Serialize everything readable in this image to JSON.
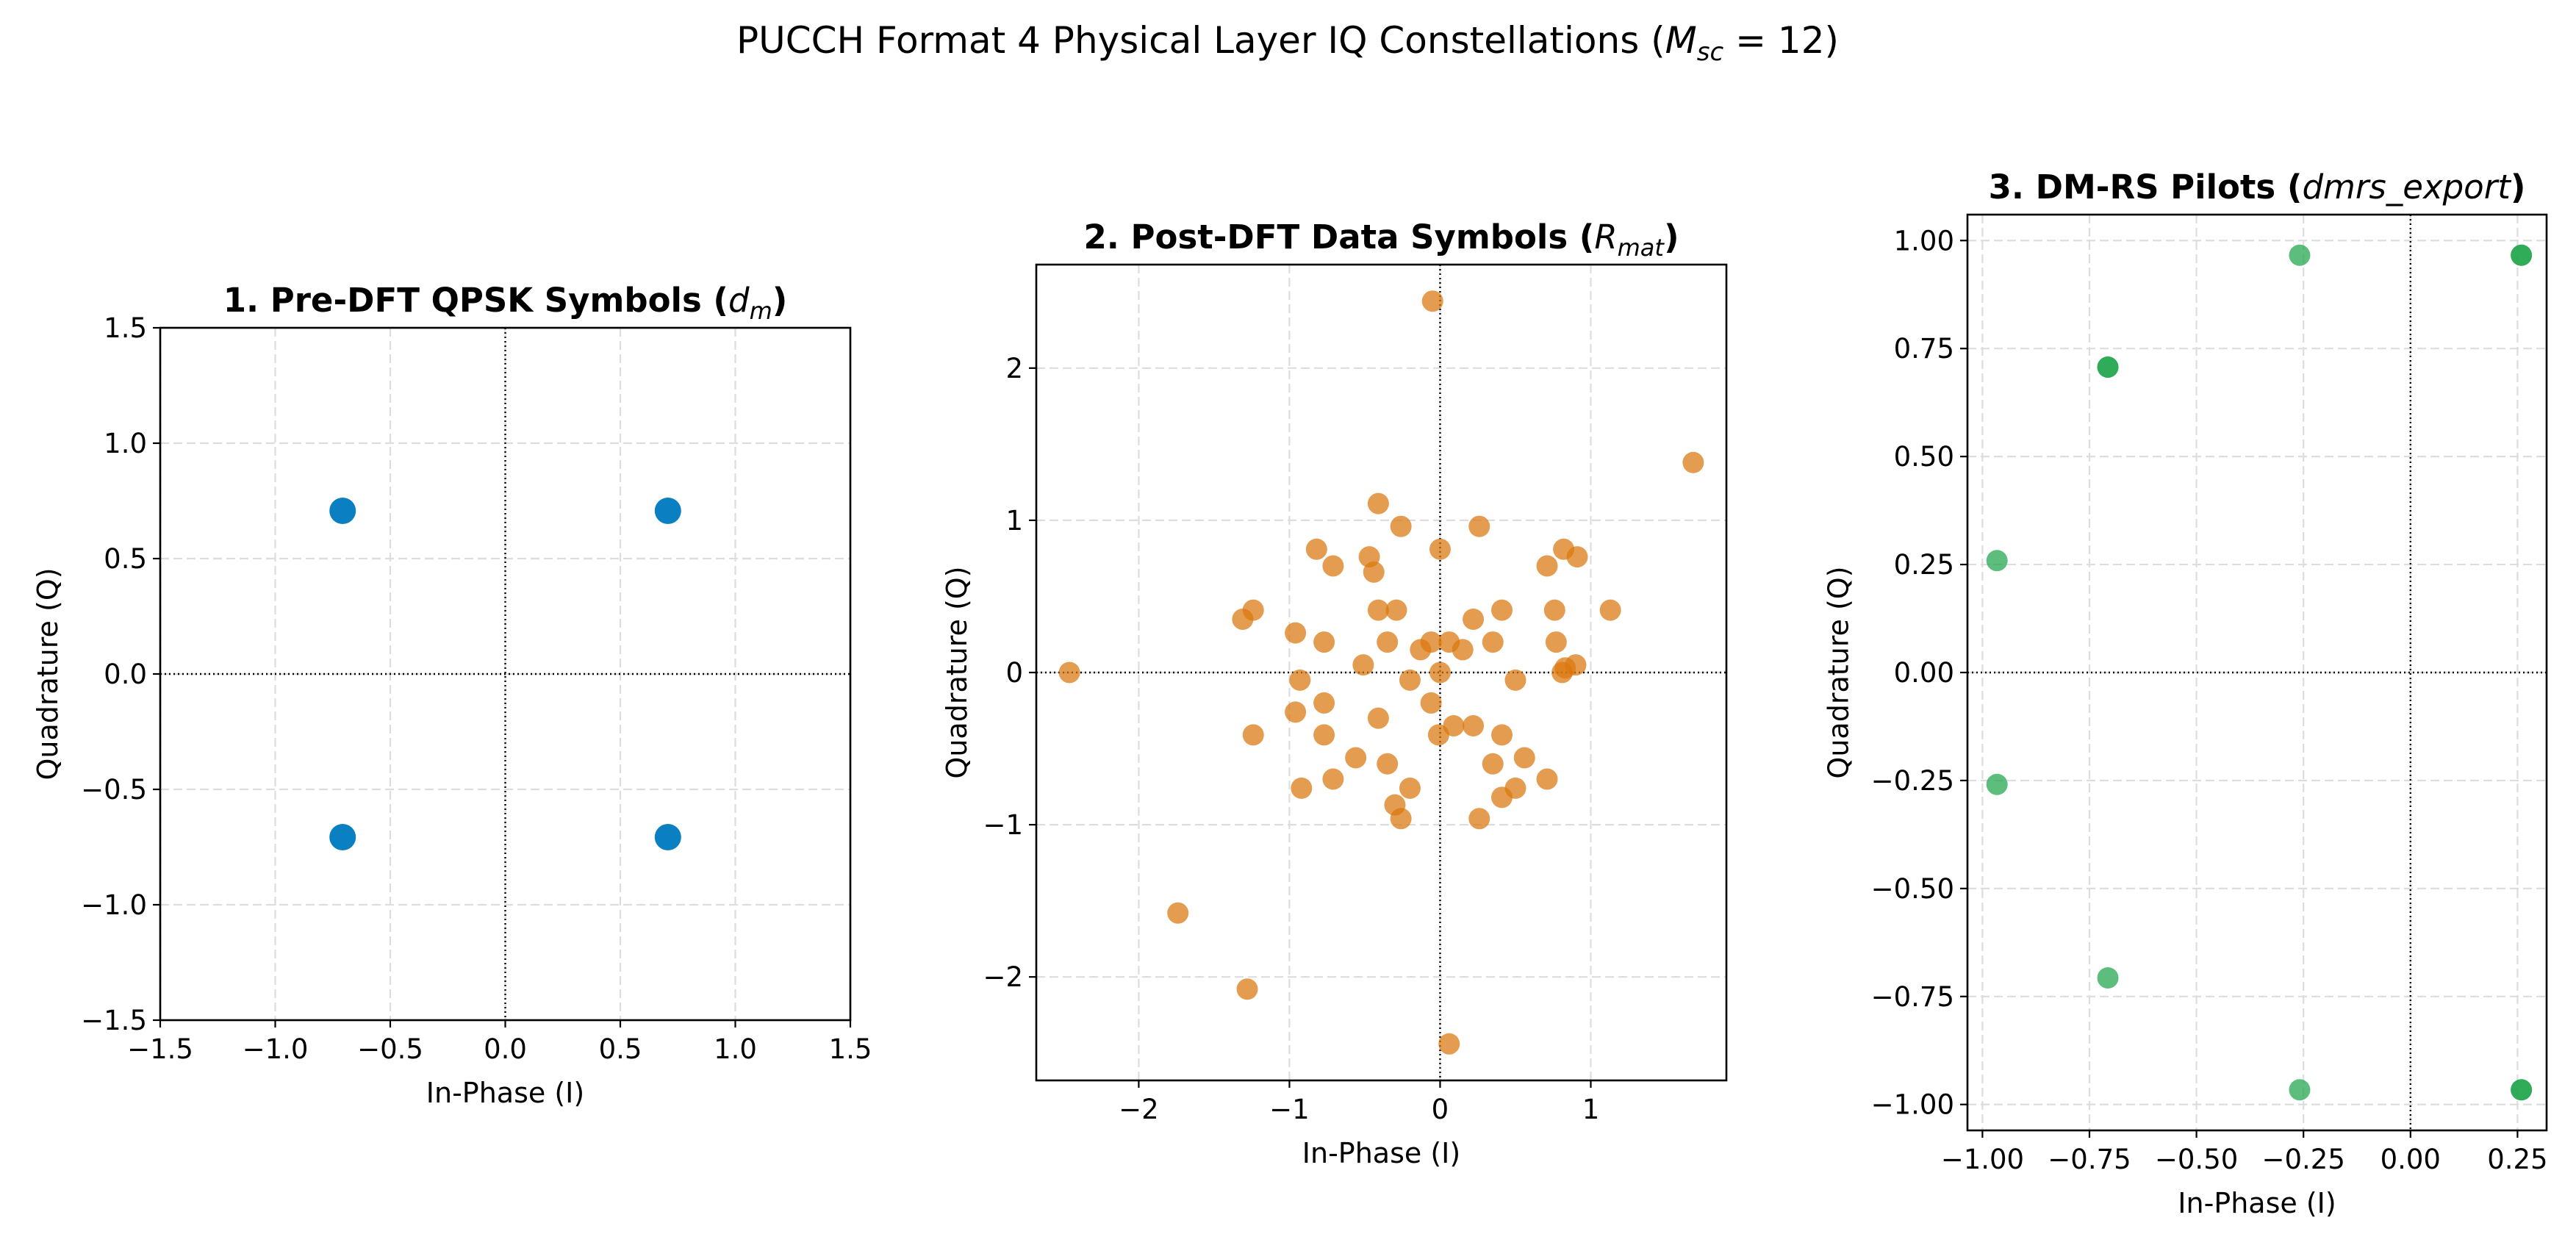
{
  "figure": {
    "title": "PUCCH Format 4 Physical Layer IQ Constellations (",
    "title_math": "M",
    "title_math_sub": "sc",
    "title_suffix": " = 12)"
  },
  "colors": {
    "pre_dft": "#0a7fc2",
    "post_dft": "#d9770c",
    "dmrs": "#1fa34a",
    "grid": "#dddddd",
    "zero_line": "#000000"
  },
  "chart_data": [
    {
      "type": "scatter",
      "title_bold": "1. Pre-DFT QPSK Symbols (",
      "title_math": "d",
      "title_math_sub": "m",
      "title_close": ")",
      "xlabel": "In-Phase (I)",
      "ylabel": "Quadrature (Q)",
      "xlim": [
        -1.5,
        1.5
      ],
      "ylim": [
        -1.5,
        1.5
      ],
      "xticks": [
        -1.5,
        -1.0,
        -0.5,
        0.0,
        0.5,
        1.0,
        1.5
      ],
      "xtick_labels": [
        "−1.5",
        "−1.0",
        "−0.5",
        "0.0",
        "0.5",
        "1.0",
        "1.5"
      ],
      "yticks": [
        -1.5,
        -1.0,
        -0.5,
        0.0,
        0.5,
        1.0,
        1.5
      ],
      "ytick_labels": [
        "−1.5",
        "−1.0",
        "−0.5",
        "0.0",
        "0.5",
        "1.0",
        "1.5"
      ],
      "grid": true,
      "marker_alpha": 1.0,
      "points": [
        [
          -0.707,
          0.707
        ],
        [
          0.707,
          0.707
        ],
        [
          -0.707,
          -0.707
        ],
        [
          0.707,
          -0.707
        ]
      ]
    },
    {
      "type": "scatter",
      "title_bold": "2. Post-DFT Data Symbols (",
      "title_math": "R",
      "title_math_sub": "mat",
      "title_close": ")",
      "xlabel": "In-Phase (I)",
      "ylabel": "Quadrature (Q)",
      "xlim": [
        -2.68,
        1.9
      ],
      "ylim": [
        -2.68,
        2.68
      ],
      "xticks": [
        -2,
        -1,
        0,
        1
      ],
      "xtick_labels": [
        "−2",
        "−1",
        "0",
        "1"
      ],
      "yticks": [
        -2,
        -1,
        0,
        1,
        2
      ],
      "ytick_labels": [
        "−2",
        "−1",
        "0",
        "1",
        "2"
      ],
      "grid": true,
      "marker_alpha": 0.72,
      "points": [
        [
          -0.05,
          2.44
        ],
        [
          1.68,
          1.38
        ],
        [
          -0.41,
          1.11
        ],
        [
          -0.26,
          0.96
        ],
        [
          0.26,
          0.96
        ],
        [
          -0.82,
          0.81
        ],
        [
          0.0,
          0.81
        ],
        [
          0.82,
          0.81
        ],
        [
          0.91,
          0.76
        ],
        [
          -0.47,
          0.76
        ],
        [
          -0.71,
          0.7
        ],
        [
          0.71,
          0.7
        ],
        [
          -0.44,
          0.66
        ],
        [
          -1.24,
          0.41
        ],
        [
          -1.31,
          0.35
        ],
        [
          -0.41,
          0.41
        ],
        [
          -0.29,
          0.41
        ],
        [
          0.41,
          0.41
        ],
        [
          0.76,
          0.41
        ],
        [
          1.13,
          0.41
        ],
        [
          0.22,
          0.35
        ],
        [
          -0.96,
          0.26
        ],
        [
          -0.77,
          0.2
        ],
        [
          -0.35,
          0.2
        ],
        [
          -0.06,
          0.2
        ],
        [
          0.06,
          0.2
        ],
        [
          0.35,
          0.2
        ],
        [
          0.77,
          0.2
        ],
        [
          -0.13,
          0.15
        ],
        [
          0.15,
          0.15
        ],
        [
          -0.51,
          0.05
        ],
        [
          0.83,
          0.03
        ],
        [
          0.9,
          0.05
        ],
        [
          -2.46,
          0.0
        ],
        [
          0.0,
          0.0
        ],
        [
          0.81,
          0.0
        ],
        [
          -0.93,
          -0.05
        ],
        [
          -0.2,
          -0.05
        ],
        [
          0.5,
          -0.05
        ],
        [
          -0.77,
          -0.2
        ],
        [
          -0.06,
          -0.2
        ],
        [
          -0.96,
          -0.26
        ],
        [
          -0.41,
          -0.3
        ],
        [
          0.09,
          -0.35
        ],
        [
          0.22,
          -0.35
        ],
        [
          -1.24,
          -0.41
        ],
        [
          -0.77,
          -0.41
        ],
        [
          -0.01,
          -0.41
        ],
        [
          0.41,
          -0.41
        ],
        [
          0.56,
          -0.56
        ],
        [
          -0.56,
          -0.56
        ],
        [
          -0.35,
          -0.6
        ],
        [
          0.35,
          -0.6
        ],
        [
          -0.71,
          -0.7
        ],
        [
          0.71,
          -0.7
        ],
        [
          -0.92,
          -0.76
        ],
        [
          -0.2,
          -0.76
        ],
        [
          0.5,
          -0.76
        ],
        [
          0.41,
          -0.82
        ],
        [
          -0.3,
          -0.87
        ],
        [
          -0.26,
          -0.96
        ],
        [
          0.26,
          -0.96
        ],
        [
          -1.74,
          -1.58
        ],
        [
          -1.28,
          -2.08
        ],
        [
          0.06,
          -2.44
        ]
      ]
    },
    {
      "type": "scatter",
      "title_bold": "3. DM-RS Pilots (",
      "title_math": "dmrs_export",
      "title_math_sub": "",
      "title_close": ")",
      "xlabel": "In-Phase (I)",
      "ylabel": "Quadrature (Q)",
      "xlim": [
        -1.035,
        0.318
      ],
      "ylim": [
        -1.06,
        1.06
      ],
      "xticks": [
        -1.0,
        -0.75,
        -0.5,
        -0.25,
        0.0,
        0.25
      ],
      "xtick_labels": [
        "−1.00",
        "−0.75",
        "−0.50",
        "−0.25",
        "0.00",
        "0.25"
      ],
      "yticks": [
        -1.0,
        -0.75,
        -0.5,
        -0.25,
        0.0,
        0.25,
        0.5,
        0.75,
        1.0
      ],
      "ytick_labels": [
        "−1.00",
        "−0.75",
        "−0.50",
        "−0.25",
        "0.00",
        "0.25",
        "0.50",
        "0.75",
        "1.00"
      ],
      "grid": true,
      "marker_alpha": 0.72,
      "points": [
        [
          -0.259,
          0.966
        ],
        [
          0.259,
          0.966
        ],
        [
          0.259,
          0.966
        ],
        [
          -0.707,
          0.707
        ],
        [
          -0.707,
          0.707
        ],
        [
          -0.966,
          0.259
        ],
        [
          -0.966,
          -0.259
        ],
        [
          -0.707,
          -0.707
        ],
        [
          -0.259,
          -0.966
        ],
        [
          0.259,
          -0.966
        ],
        [
          0.259,
          -0.966
        ]
      ]
    }
  ]
}
